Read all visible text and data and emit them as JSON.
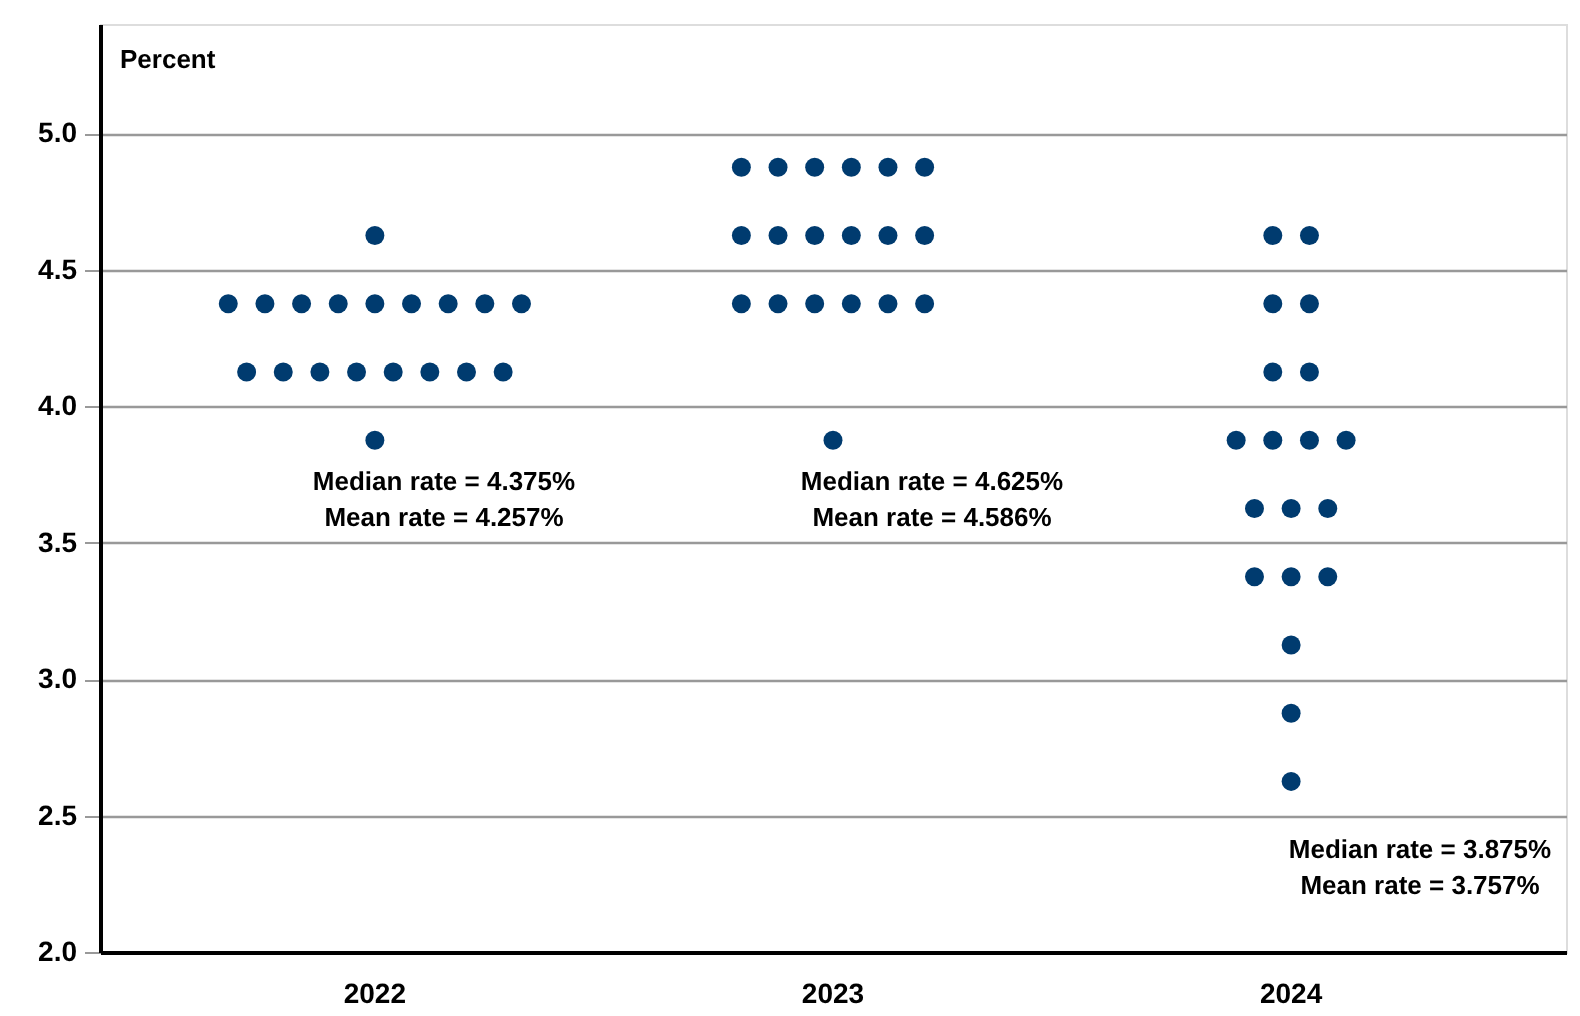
{
  "chart_data": {
    "type": "scatter",
    "ylabel": "Percent",
    "categories": [
      "2022",
      "2023",
      "2024"
    ],
    "series": [
      {
        "color": "#003b6f",
        "values": [
          4.625,
          4.875,
          4.625
        ]
      },
      {
        "color": "#003b6f",
        "values": [
          4.375,
          4.875,
          4.625
        ]
      },
      {
        "color": "#003b6f",
        "values": [
          4.375,
          4.875,
          4.375
        ]
      },
      {
        "color": "#003b6f",
        "values": [
          4.375,
          4.875,
          4.375
        ]
      },
      {
        "color": "#003b6f",
        "values": [
          4.375,
          4.875,
          4.125
        ]
      },
      {
        "color": "#003b6f",
        "values": [
          4.375,
          4.875,
          4.125
        ]
      },
      {
        "color": "#003b6f",
        "values": [
          4.375,
          4.625,
          3.875
        ]
      },
      {
        "color": "#003b6f",
        "values": [
          4.375,
          4.625,
          3.875
        ]
      },
      {
        "color": "#003b6f",
        "values": [
          4.375,
          4.625,
          3.875
        ]
      },
      {
        "color": "#003b6f",
        "values": [
          4.375,
          4.625,
          3.875
        ]
      },
      {
        "color": "#003b6f",
        "values": [
          4.125,
          4.625,
          3.625
        ]
      },
      {
        "color": "#003b6f",
        "values": [
          4.125,
          4.625,
          3.625
        ]
      },
      {
        "color": "#003b6f",
        "values": [
          4.125,
          4.375,
          3.625
        ]
      },
      {
        "color": "#003b6f",
        "values": [
          4.125,
          4.375,
          3.375
        ]
      },
      {
        "color": "#003b6f",
        "values": [
          4.125,
          4.375,
          3.375
        ]
      },
      {
        "color": "#003b6f",
        "values": [
          4.125,
          4.375,
          3.375
        ]
      },
      {
        "color": "#003b6f",
        "values": [
          4.125,
          4.375,
          3.125
        ]
      },
      {
        "color": "#003b6f",
        "values": [
          4.125,
          4.375,
          2.875
        ]
      },
      {
        "color": "#003b6f",
        "values": [
          3.875,
          3.875,
          2.625
        ]
      }
    ],
    "ylim": [
      2.0,
      5.4
    ],
    "yticks": [
      {
        "value": 2,
        "label": "2.0"
      },
      2.5,
      {
        "value": 3,
        "label": "3.0"
      },
      3.5,
      {
        "value": 4,
        "label": "4.0"
      },
      4.5,
      {
        "value": 5,
        "label": "5.0"
      }
    ],
    "grid": "y",
    "marker": "circle",
    "annotations": [
      "Median rate = 4.375%",
      "Mean rate = 4.257%",
      "Median rate = 4.625%",
      "Mean rate = 4.586%",
      "Median rate = 3.875%",
      "Mean rate = 3.757%"
    ]
  }
}
